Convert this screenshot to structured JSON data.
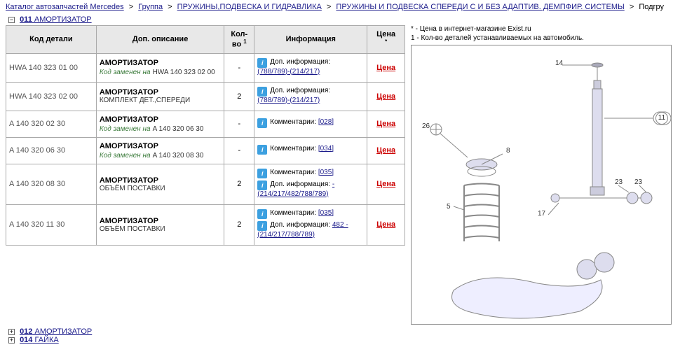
{
  "breadcrumbs": [
    {
      "label": "Каталог автозапчастей Mercedes",
      "link": true
    },
    {
      "label": "Группа",
      "link": true
    },
    {
      "label": "ПРУЖИНЫ,ПОДВЕСКА И ГИДРАВЛИКА",
      "link": true
    },
    {
      "label": "ПРУЖИНЫ И ПОДВЕСКА СПЕРЕДИ С И БЕЗ АДАПТИВ. ДЕМПФИР. СИСТЕМЫ",
      "link": true
    },
    {
      "label": "Подгру",
      "link": false
    }
  ],
  "section_main": {
    "code": "011",
    "label": "АМОРТИЗАТОР",
    "toggle": "−"
  },
  "headers": {
    "code": "Код детали",
    "desc": "Доп. описание",
    "qty_pre": "Кол-во",
    "qty_sup": "1",
    "info": "Информация",
    "price_pre": "Цена",
    "price_sup": "*"
  },
  "rows": [
    {
      "code": "HWA 140 323 01 00",
      "title": "АМОРТИЗАТОР",
      "replaced_label": "Код заменен на",
      "replaced_code": "HWA 140 323 02 00",
      "qty": "-",
      "info": [
        {
          "label": "Доп. информация:",
          "link": "(788/789)-(214/217)"
        }
      ],
      "price": "Цена"
    },
    {
      "code": "HWA 140 323 02 00",
      "title": "АМОРТИЗАТОР",
      "subtitle": "КОМПЛЕКТ ДЕТ.,СПЕРЕДИ",
      "qty": "2",
      "info": [
        {
          "label": "Доп. информация:",
          "link": "(788/789)-(214/217)"
        }
      ],
      "price": "Цена"
    },
    {
      "code": "A   140 320 02 30",
      "title": "АМОРТИЗАТОР",
      "replaced_label": "Код заменен на",
      "replaced_code": "A   140 320 06 30",
      "qty": "-",
      "info": [
        {
          "label": "Комментарии:",
          "link": "[028]"
        }
      ],
      "price": "Цена"
    },
    {
      "code": "A   140 320 06 30",
      "title": "АМОРТИЗАТОР",
      "replaced_label": "Код заменен на",
      "replaced_code": "A   140 320 08 30",
      "qty": "-",
      "info": [
        {
          "label": "Комментарии:",
          "link": "[034]"
        }
      ],
      "price": "Цена"
    },
    {
      "code": "A   140 320 08 30",
      "title": "АМОРТИЗАТОР",
      "subtitle": "ОБЪЁМ ПОСТАВКИ",
      "qty": "2",
      "info": [
        {
          "label": "Комментарии:",
          "link": "[035]"
        },
        {
          "label": "Доп. информация:",
          "link": "-(214/217/482/788/789)"
        }
      ],
      "price": "Цена"
    },
    {
      "code": "A   140 320 11 30",
      "title": "АМОРТИЗАТОР",
      "subtitle": "ОБЪЁМ ПОСТАВКИ",
      "qty": "2",
      "info": [
        {
          "label": "Комментарии:",
          "link": "[035]"
        },
        {
          "label": "Доп. информация:",
          "link": "482 -(214/217/788/789)"
        }
      ],
      "price": "Цена"
    }
  ],
  "notes": {
    "n1": "* - Цена в интернет-магазине Exist.ru",
    "n2": "1 - Кол-во деталей устанавливаемых на автомобиль."
  },
  "diagram_callouts": [
    "14",
    "11",
    "26",
    "8",
    "17",
    "5",
    "23",
    "23"
  ],
  "sections_below": [
    {
      "code": "012",
      "label": "АМОРТИЗАТОР",
      "toggle": "+"
    },
    {
      "code": "014",
      "label": "ГАЙКА",
      "toggle": "+"
    }
  ],
  "colors": {
    "link": "#1a1a8a",
    "price": "#c00000",
    "header_bg": "#e8e8e8",
    "border": "#aaaaaa",
    "green": "#3a7a3a",
    "icon_bg": "#3ca0e0"
  }
}
